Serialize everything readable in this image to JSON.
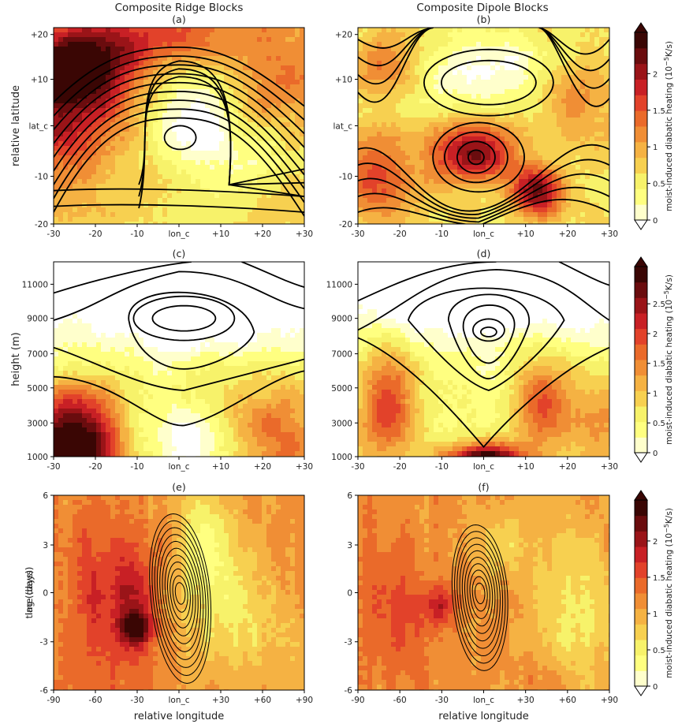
{
  "figure": {
    "col_titles": [
      "Composite Ridge Blocks",
      "Composite Dipole Blocks"
    ],
    "panel_labels": [
      "(a)",
      "(b)",
      "(c)",
      "(d)",
      "(e)",
      "(f)"
    ],
    "colorbar_label_main": "moist-induced diabatic heating",
    "colorbar_label_unit": "(10",
    "colorbar_label_exp": "−5",
    "colorbar_label_tail": "K/s)"
  },
  "colors": {
    "scale": [
      "#ffffff",
      "#ffffcc",
      "#ffff80",
      "#f7f26a",
      "#f7d050",
      "#f5b243",
      "#f08e35",
      "#ea6a2a",
      "#e2422a",
      "#c82025",
      "#9a1418",
      "#6a0c0e",
      "#3a0604"
    ],
    "contour": "#000000"
  },
  "chart_data": [
    {
      "id": "a",
      "type": "heatmap",
      "title": "(a)",
      "xlabel": "",
      "ylabel": "relative latitude",
      "xticks": [
        "-30",
        "-20",
        "-10",
        "lon_c",
        "+10",
        "+20",
        "+30"
      ],
      "yticks": [
        "-20",
        "-10",
        "lat_c",
        "+10",
        "+20"
      ],
      "xlim": [
        -30,
        30
      ],
      "ylim": [
        -20,
        20
      ],
      "heating_range": [
        0,
        2
      ],
      "features": [
        {
          "kind": "heating_max",
          "x": -22,
          "y": 11,
          "value": 1.7
        },
        {
          "kind": "heating_min",
          "x": 0,
          "y": 2,
          "value": 0.1
        },
        {
          "kind": "contour_closed_center",
          "x": 0,
          "y": 2
        }
      ]
    },
    {
      "id": "b",
      "type": "heatmap",
      "title": "(b)",
      "xlabel": "",
      "ylabel": "",
      "xticks": [
        "-30",
        "-20",
        "-10",
        "lon_c",
        "+10",
        "+20",
        "+30"
      ],
      "yticks": [
        "-20",
        "-10",
        "lat_c",
        "+10",
        "+20"
      ],
      "xlim": [
        -30,
        30
      ],
      "ylim": [
        -20,
        20
      ],
      "heating_range": [
        0,
        2
      ],
      "features": [
        {
          "kind": "heating_max",
          "x": 10,
          "y": -12,
          "value": 2.0
        },
        {
          "kind": "heating_max",
          "x": -2,
          "y": -6,
          "value": 1.9
        },
        {
          "kind": "heating_min",
          "x": 2,
          "y": 10,
          "value": 0.1
        },
        {
          "kind": "contour_closed_center",
          "x": 2,
          "y": 10
        },
        {
          "kind": "contour_closed_center",
          "x": -2,
          "y": -7
        }
      ]
    },
    {
      "id": "c",
      "type": "heatmap",
      "title": "(c)",
      "xlabel": "",
      "ylabel": "height (m)",
      "xticks": [
        "-30",
        "-20",
        "-10",
        "lon_c",
        "+10",
        "+20",
        "+30"
      ],
      "yticks": [
        "1000",
        "3000",
        "5000",
        "7000",
        "9000",
        "11000"
      ],
      "xlim": [
        -30,
        30
      ],
      "ylim": [
        1000,
        12000
      ],
      "heating_range": [
        0,
        2.5
      ],
      "features": [
        {
          "kind": "heating_max",
          "x": -28,
          "y": 1500,
          "value": 2.4
        },
        {
          "kind": "heating_max",
          "x": -22,
          "y": 3500,
          "value": 2.1
        },
        {
          "kind": "contour_closed_center",
          "x": 0,
          "y": 8800
        }
      ]
    },
    {
      "id": "d",
      "type": "heatmap",
      "title": "(d)",
      "xlabel": "",
      "ylabel": "",
      "xticks": [
        "-30",
        "-20",
        "-10",
        "lon_c",
        "+10",
        "+20",
        "+30"
      ],
      "yticks": [
        "1000",
        "3000",
        "5000",
        "7000",
        "9000",
        "11000"
      ],
      "xlim": [
        -30,
        30
      ],
      "ylim": [
        1000,
        12000
      ],
      "heating_range": [
        0,
        2.5
      ],
      "features": [
        {
          "kind": "heating_max",
          "x": 0,
          "y": 1200,
          "value": 2.5
        },
        {
          "kind": "heating_max",
          "x": -25,
          "y": 4000,
          "value": 1.8
        },
        {
          "kind": "heating_max",
          "x": 12,
          "y": 3500,
          "value": 1.6
        },
        {
          "kind": "contour_closed_center",
          "x": 2,
          "y": 8000
        }
      ]
    },
    {
      "id": "e",
      "type": "heatmap",
      "title": "(e)",
      "xlabel": "relative longitude",
      "ylabel": "lag (days)",
      "xticks": [
        "-90",
        "-60",
        "-30",
        "lon_c",
        "+30",
        "+60",
        "+90"
      ],
      "yticks": [
        "-6",
        "-3",
        "0",
        "3",
        "6"
      ],
      "xlim": [
        -90,
        90
      ],
      "ylim": [
        -6,
        6
      ],
      "heating_range": [
        0,
        2
      ],
      "features": [
        {
          "kind": "heating_max",
          "x": -33,
          "y": -2,
          "value": 2.0
        },
        {
          "kind": "contour_closed_center",
          "x": 0,
          "y": 0
        }
      ]
    },
    {
      "id": "f",
      "type": "heatmap",
      "title": "(f)",
      "xlabel": "relative longitude",
      "ylabel": "time (days)",
      "xticks": [
        "-90",
        "-60",
        "-30",
        "lon_c",
        "+30",
        "+60",
        "+90"
      ],
      "yticks": [
        "-6",
        "-3",
        "0",
        "3",
        "6"
      ],
      "xlim": [
        -90,
        90
      ],
      "ylim": [
        -6,
        6
      ],
      "heating_range": [
        0,
        2
      ],
      "features": [
        {
          "kind": "heating_max",
          "x": -33,
          "y": -1,
          "value": 1.8
        },
        {
          "kind": "contour_closed_center",
          "x": -3,
          "y": 0
        }
      ]
    }
  ],
  "colorbars": [
    {
      "id": "cb1",
      "ticks": [
        "0",
        "0.5",
        "1",
        "1.5",
        "2"
      ],
      "range": [
        0,
        2
      ]
    },
    {
      "id": "cb2",
      "ticks": [
        "0",
        "0.5",
        "1",
        "1.5",
        "2",
        "2.5"
      ],
      "range": [
        0,
        2.5
      ]
    },
    {
      "id": "cb3",
      "ticks": [
        "0",
        "0.5",
        "1",
        "1.5",
        "2"
      ],
      "range": [
        0,
        2
      ]
    }
  ]
}
